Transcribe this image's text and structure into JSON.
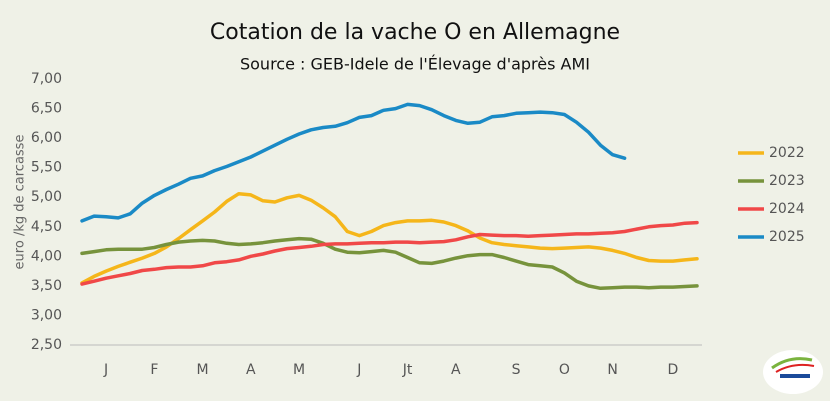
{
  "chart_data": {
    "type": "line",
    "title": "Cotation de la vache O en Allemagne",
    "subtitle": "Source : GEB-Idele de l'Élevage d'après AMI",
    "y_label": "euro /kg de carcasse",
    "categories": [
      null,
      null,
      "J",
      null,
      null,
      null,
      "F",
      null,
      null,
      null,
      "M",
      null,
      null,
      null,
      "A",
      null,
      null,
      null,
      "M",
      null,
      null,
      null,
      null,
      "J",
      null,
      null,
      null,
      "Jt",
      null,
      null,
      null,
      "A",
      null,
      null,
      null,
      null,
      "S",
      null,
      null,
      null,
      "O",
      null,
      null,
      null,
      "N",
      null,
      null,
      null,
      null,
      "D",
      null,
      null
    ],
    "ylim": [
      2.5,
      7.0
    ],
    "yticks": [
      {
        "value": 2.5,
        "label": "2,50"
      },
      {
        "value": 3.0,
        "label": "3,00"
      },
      {
        "value": 3.5,
        "label": "3,50"
      },
      {
        "value": 4.0,
        "label": "4,00"
      },
      {
        "value": 4.5,
        "label": "4,50"
      },
      {
        "value": 5.0,
        "label": "5,00"
      },
      {
        "value": 5.5,
        "label": "5,50"
      },
      {
        "value": 6.0,
        "label": "6,00"
      },
      {
        "value": 6.5,
        "label": "6,50"
      },
      {
        "value": 7.0,
        "label": "7,00"
      }
    ],
    "grid": false,
    "legend": "right",
    "series": [
      {
        "name": "2022",
        "color": "#f5b61a",
        "values": [
          3.55,
          3.66,
          3.75,
          3.83,
          3.9,
          3.97,
          4.05,
          4.16,
          4.3,
          4.45,
          4.6,
          4.75,
          4.93,
          5.06,
          5.04,
          4.94,
          4.92,
          4.99,
          5.03,
          4.95,
          4.82,
          4.67,
          4.42,
          4.35,
          4.42,
          4.52,
          4.57,
          4.6,
          4.6,
          4.61,
          4.58,
          4.52,
          4.43,
          4.31,
          4.23,
          4.2,
          4.18,
          4.16,
          4.14,
          4.13,
          4.14,
          4.15,
          4.16,
          4.14,
          4.1,
          4.05,
          3.98,
          3.93,
          3.92,
          3.92,
          3.94,
          3.96
        ]
      },
      {
        "name": "2023",
        "color": "#77933c",
        "values": [
          4.05,
          4.08,
          4.11,
          4.12,
          4.12,
          4.12,
          4.15,
          4.2,
          4.24,
          4.26,
          4.27,
          4.26,
          4.22,
          4.2,
          4.21,
          4.23,
          4.26,
          4.28,
          4.3,
          4.29,
          4.22,
          4.12,
          4.07,
          4.06,
          4.08,
          4.1,
          4.07,
          3.98,
          3.89,
          3.88,
          3.92,
          3.97,
          4.01,
          4.03,
          4.03,
          3.98,
          3.92,
          3.86,
          3.84,
          3.82,
          3.72,
          3.58,
          3.5,
          3.46,
          3.47,
          3.48,
          3.48,
          3.47,
          3.48,
          3.48,
          3.49,
          3.5
        ]
      },
      {
        "name": "2024",
        "color": "#f04848",
        "values": [
          3.53,
          3.58,
          3.63,
          3.67,
          3.71,
          3.76,
          3.78,
          3.81,
          3.82,
          3.82,
          3.84,
          3.89,
          3.91,
          3.94,
          4.0,
          4.04,
          4.09,
          4.13,
          4.15,
          4.17,
          4.2,
          4.21,
          4.21,
          4.22,
          4.23,
          4.23,
          4.24,
          4.24,
          4.23,
          4.24,
          4.25,
          4.28,
          4.33,
          4.37,
          4.36,
          4.35,
          4.35,
          4.34,
          4.35,
          4.36,
          4.37,
          4.38,
          4.38,
          4.39,
          4.4,
          4.42,
          4.46,
          4.5,
          4.52,
          4.53,
          4.56,
          4.57
        ]
      },
      {
        "name": "2025",
        "color": "#1a8ac6",
        "values": [
          4.6,
          4.68,
          4.67,
          4.65,
          4.72,
          4.9,
          5.03,
          5.13,
          5.22,
          5.32,
          5.36,
          5.45,
          5.52,
          5.6,
          5.68,
          5.78,
          5.88,
          5.98,
          6.07,
          6.14,
          6.18,
          6.2,
          6.26,
          6.35,
          6.38,
          6.47,
          6.5,
          6.57,
          6.55,
          6.48,
          6.38,
          6.3,
          6.25,
          6.27,
          6.36,
          6.38,
          6.42,
          6.43,
          6.44,
          6.43,
          6.4,
          6.27,
          6.1,
          5.88,
          5.72,
          5.66,
          null,
          null,
          null,
          null,
          null,
          null
        ]
      }
    ]
  }
}
